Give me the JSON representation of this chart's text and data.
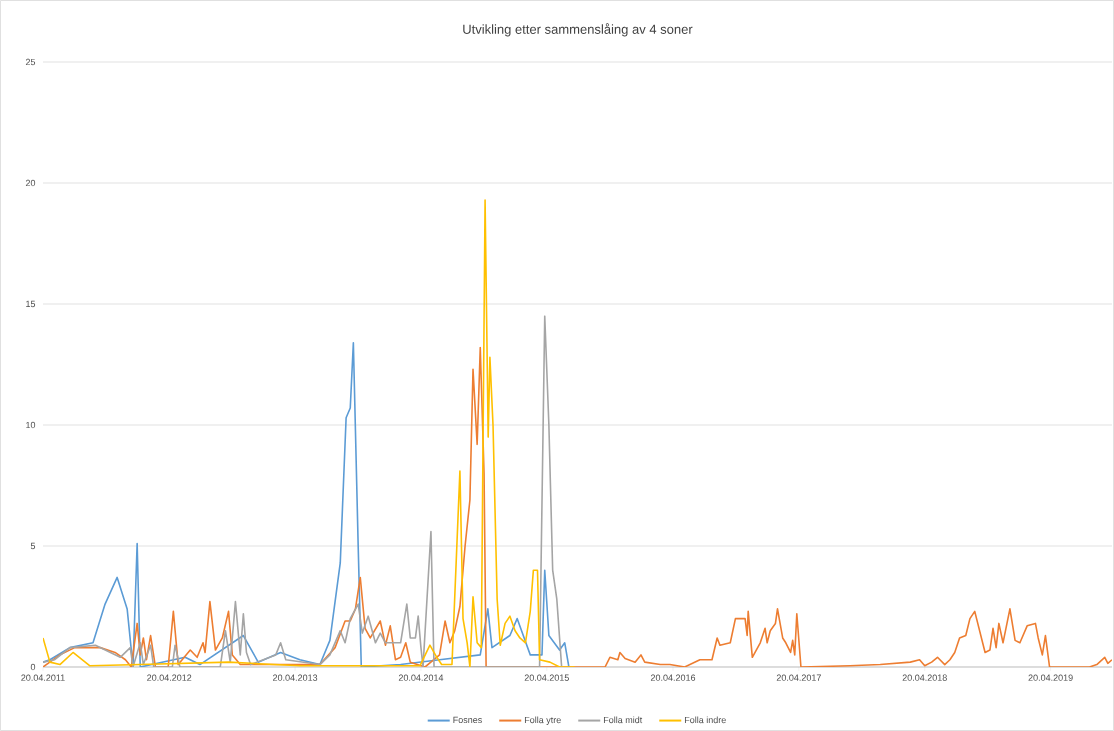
{
  "chart_data": {
    "type": "line",
    "title": "Utvikling etter sammenslåing av 4 soner",
    "xlim": [
      "2011-04-20",
      "2019-10-15"
    ],
    "xticks": [
      {
        "value": "2011-04-20",
        "label": "20.04.2011"
      },
      {
        "value": "2012-04-20",
        "label": "20.04.2012"
      },
      {
        "value": "2013-04-20",
        "label": "20.04.2013"
      },
      {
        "value": "2014-04-20",
        "label": "20.04.2014"
      },
      {
        "value": "2015-04-20",
        "label": "20.04.2015"
      },
      {
        "value": "2016-04-20",
        "label": "20.04.2016"
      },
      {
        "value": "2017-04-20",
        "label": "20.04.2017"
      },
      {
        "value": "2018-04-20",
        "label": "20.04.2018"
      },
      {
        "value": "2019-04-20",
        "label": "20.04.2019"
      }
    ],
    "ylim": [
      0,
      25
    ],
    "yticks": [
      0,
      5,
      10,
      15,
      20,
      25
    ],
    "grid": "y",
    "legend": "bottom",
    "series": [
      {
        "name": "Fosnes",
        "color": "#5b9bd5",
        "x": [
          "2011-04-20",
          "2011-05-10",
          "2011-07-07",
          "2011-09-12",
          "2011-10-17",
          "2011-11-21",
          "2011-12-20",
          "2012-01-06",
          "2012-01-18",
          "2012-01-27",
          "2012-06-05",
          "2012-07-18",
          "2012-11-21",
          "2013-01-03",
          "2013-03-09",
          "2013-05-04",
          "2013-07-01",
          "2013-07-30",
          "2013-08-29",
          "2013-09-15",
          "2013-09-27",
          "2013-10-06",
          "2013-10-20",
          "2013-10-29",
          "2014-02-20",
          "2014-06-13",
          "2014-10-09",
          "2014-10-31",
          "2014-11-12",
          "2015-01-03",
          "2015-01-24",
          "2015-03-03",
          "2015-04-06",
          "2015-04-14",
          "2015-04-26",
          "2015-05-27",
          "2015-06-11",
          "2015-06-23"
        ],
        "values": [
          0.2,
          0.3,
          0.8,
          1.0,
          2.6,
          3.7,
          2.4,
          0,
          5.1,
          0,
          0.4,
          0.1,
          1.3,
          0.2,
          0.6,
          0.3,
          0.1,
          1.1,
          4.3,
          10.3,
          10.7,
          13.4,
          5,
          0,
          0.1,
          0.3,
          0.5,
          2.4,
          0.8,
          1.3,
          2.0,
          0.5,
          0.5,
          4.0,
          1.3,
          0.7,
          1.0,
          0
        ]
      },
      {
        "name": "Folla ytre",
        "color": "#ed7d31",
        "x": [
          "2011-04-20",
          "2011-06-08",
          "2011-07-21",
          "2011-10-03",
          "2011-11-15",
          "2011-12-15",
          "2012-01-01",
          "2012-01-18",
          "2012-01-27",
          "2012-02-05",
          "2012-02-14",
          "2012-02-26",
          "2012-03-11",
          "2012-04-17",
          "2012-05-02",
          "2012-05-16",
          "2012-06-20",
          "2012-07-10",
          "2012-07-27",
          "2012-08-02",
          "2012-08-16",
          "2012-09-01",
          "2012-09-21",
          "2012-10-09",
          "2012-10-20",
          "2012-11-12",
          "2013-07-01",
          "2013-08-14",
          "2013-09-12",
          "2013-09-27",
          "2013-10-12",
          "2013-10-26",
          "2013-11-09",
          "2013-11-24",
          "2013-12-23",
          "2014-01-07",
          "2014-01-21",
          "2014-02-05",
          "2014-02-20",
          "2014-03-07",
          "2014-03-20",
          "2014-05-02",
          "2014-06-13",
          "2014-06-29",
          "2014-07-13",
          "2014-07-27",
          "2014-08-11",
          "2014-08-26",
          "2014-09-09",
          "2014-09-18",
          "2014-09-30",
          "2014-10-09",
          "2014-10-20",
          "2014-10-26",
          "2015-10-06",
          "2015-10-20",
          "2015-11-12",
          "2015-11-18",
          "2015-12-03",
          "2016-01-01",
          "2016-01-18",
          "2016-01-29",
          "2016-03-14",
          "2016-04-11",
          "2016-05-24",
          "2016-07-07",
          "2016-08-11",
          "2016-08-26",
          "2016-09-03",
          "2016-10-03",
          "2016-10-18",
          "2016-11-15",
          "2016-11-21",
          "2016-11-24",
          "2016-12-06",
          "2016-12-29",
          "2017-01-12",
          "2017-01-18",
          "2017-01-27",
          "2017-02-11",
          "2017-02-17",
          "2017-03-04",
          "2017-03-13",
          "2017-03-27",
          "2017-04-02",
          "2017-04-08",
          "2017-04-14",
          "2017-04-26",
          "2017-09-15",
          "2017-12-12",
          "2018-03-09",
          "2018-04-05",
          "2018-04-20",
          "2018-05-10",
          "2018-05-27",
          "2018-06-17",
          "2018-07-02",
          "2018-07-16",
          "2018-07-30",
          "2018-08-17",
          "2018-08-29",
          "2018-09-12",
          "2018-10-12",
          "2018-10-26",
          "2018-11-04",
          "2018-11-13",
          "2018-11-21",
          "2018-12-03",
          "2018-12-23",
          "2019-01-07",
          "2019-01-21",
          "2019-02-11",
          "2019-03-07",
          "2019-03-15",
          "2019-03-27",
          "2019-04-05",
          "2019-04-17",
          "2019-08-11",
          "2019-09-01",
          "2019-09-24",
          "2019-10-03",
          "2019-10-15"
        ],
        "values": [
          0,
          0.5,
          0.8,
          0.8,
          0.6,
          0.3,
          0,
          1.8,
          0.5,
          1.2,
          0.3,
          1.3,
          0,
          0,
          2.3,
          0.1,
          0.7,
          0.4,
          1.0,
          0.6,
          2.7,
          0.7,
          1.2,
          2.3,
          0.5,
          0.1,
          0.1,
          0.8,
          1.9,
          1.9,
          2.4,
          3.7,
          1.6,
          1.2,
          1.9,
          0.9,
          1.7,
          0.3,
          0.4,
          1.0,
          0.2,
          0,
          0.5,
          1.9,
          1.0,
          1.5,
          2.5,
          5.0,
          6.9,
          12.3,
          9.2,
          13.2,
          8.0,
          0,
          0,
          0.4,
          0.3,
          0.6,
          0.35,
          0.2,
          0.5,
          0.2,
          0.1,
          0.1,
          0,
          0.3,
          0.3,
          1.2,
          0.9,
          1.0,
          2.0,
          2.0,
          1.3,
          2.3,
          0.4,
          1.0,
          1.6,
          1.0,
          1.5,
          1.8,
          2.4,
          1.2,
          1.0,
          0.6,
          1.1,
          0.5,
          2.2,
          0,
          0.05,
          0.1,
          0.2,
          0.3,
          0.05,
          0.2,
          0.4,
          0.1,
          0.3,
          0.6,
          1.2,
          1.3,
          2.0,
          2.3,
          0.6,
          0.7,
          1.6,
          0.8,
          1.8,
          1.0,
          2.4,
          1.1,
          1.0,
          1.7,
          1.8,
          1.2,
          0.5,
          1.3,
          0,
          0,
          0.1,
          0.4,
          0.15,
          0.3
        ]
      },
      {
        "name": "Folla midt",
        "color": "#a5a5a5",
        "x": [
          "2011-04-20",
          "2011-05-24",
          "2011-07-07",
          "2011-09-19",
          "2011-11-30",
          "2011-12-29",
          "2012-01-06",
          "2012-01-27",
          "2012-02-05",
          "2012-02-26",
          "2012-03-06",
          "2012-04-29",
          "2012-05-07",
          "2012-05-21",
          "2012-09-15",
          "2012-09-30",
          "2012-10-14",
          "2012-10-29",
          "2012-11-12",
          "2012-11-21",
          "2012-11-30",
          "2012-12-12",
          "2013-02-23",
          "2013-03-09",
          "2013-03-24",
          "2013-07-01",
          "2013-07-30",
          "2013-08-29",
          "2013-09-12",
          "2013-09-27",
          "2013-10-20",
          "2013-11-01",
          "2013-11-18",
          "2013-12-09",
          "2013-12-23",
          "2014-01-07",
          "2014-02-20",
          "2014-03-10",
          "2014-03-20",
          "2014-04-04",
          "2014-04-12",
          "2014-04-20",
          "2014-04-26",
          "2014-05-19",
          "2014-05-28",
          "2015-03-30",
          "2015-04-14",
          "2015-04-26",
          "2015-05-07",
          "2015-05-19",
          "2015-06-02"
        ],
        "values": [
          0.2,
          0.3,
          0.8,
          0.9,
          0.4,
          0.8,
          0,
          1.0,
          0.1,
          0.9,
          0,
          0,
          0.9,
          0,
          0,
          1.5,
          0.2,
          2.7,
          0.5,
          2.2,
          0.6,
          0.1,
          0.5,
          1.0,
          0.3,
          0.1,
          0.5,
          1.5,
          1.0,
          2.0,
          2.6,
          1.4,
          2.1,
          1.0,
          1.4,
          1.0,
          1.0,
          2.6,
          1.2,
          1.2,
          2.1,
          0.8,
          0,
          5.6,
          0,
          0,
          14.5,
          10.0,
          4.0,
          2.8,
          0
        ]
      },
      {
        "name": "Folla indre",
        "color": "#ffc000",
        "x": [
          "2011-04-20",
          "2011-05-10",
          "2011-06-08",
          "2011-07-16",
          "2011-09-03",
          "2012-01-27",
          "2012-10-09",
          "2013-05-04",
          "2014-04-17",
          "2014-05-16",
          "2014-06-05",
          "2014-06-19",
          "2014-07-19",
          "2014-08-11",
          "2014-08-20",
          "2014-09-01",
          "2014-09-09",
          "2014-09-18",
          "2014-09-30",
          "2014-10-12",
          "2014-10-23",
          "2014-11-01",
          "2014-11-06",
          "2014-11-15",
          "2014-11-27",
          "2014-12-06",
          "2014-12-20",
          "2015-01-03",
          "2015-01-18",
          "2015-02-01",
          "2015-02-17",
          "2015-03-03",
          "2015-03-12",
          "2015-03-24",
          "2015-03-30",
          "2015-04-29",
          "2015-05-27",
          "2015-07-10"
        ],
        "values": [
          1.2,
          0.2,
          0.1,
          0.6,
          0.05,
          0.1,
          0.2,
          0.05,
          0.05,
          0.9,
          0.4,
          0.1,
          0.1,
          8.1,
          2.0,
          1.0,
          0,
          2.9,
          1.0,
          0.8,
          19.3,
          9.5,
          12.8,
          10,
          2.8,
          0.9,
          1.8,
          2.1,
          1.5,
          1.2,
          1.0,
          2.3,
          4.0,
          4.0,
          0.3,
          0.2,
          0,
          0
        ]
      }
    ]
  }
}
